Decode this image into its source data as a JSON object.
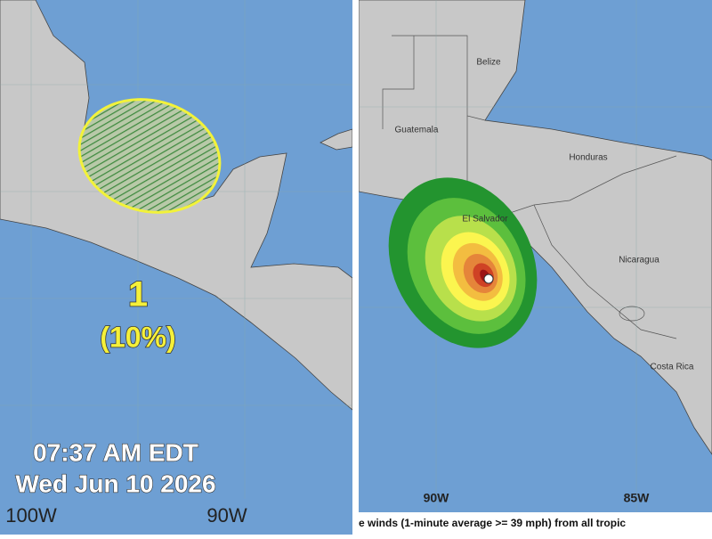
{
  "left_panel": {
    "storm_number": "1",
    "probability": "(10%)",
    "time": "07:37 AM EDT",
    "date": "Wed Jun 10 2026",
    "longitude_labels": [
      "100W",
      "90W"
    ]
  },
  "right_panel": {
    "countries": [
      "Belize",
      "Guatemala",
      "Honduras",
      "El Salvador",
      "Nicaragua",
      "Costa Rica"
    ],
    "longitude_labels": [
      "90W",
      "85W"
    ],
    "caption": "e winds (1-minute average >= 39 mph) from all tropic"
  }
}
